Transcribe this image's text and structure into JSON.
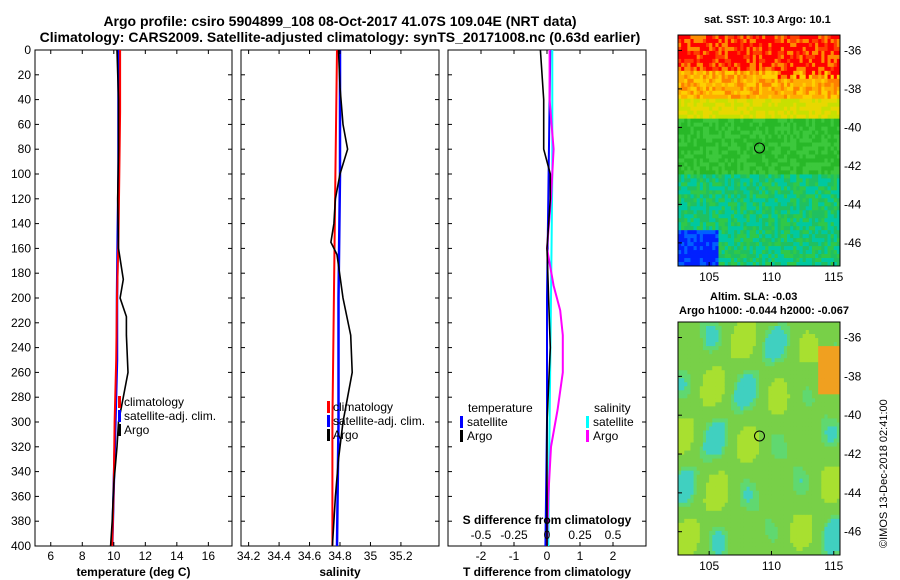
{
  "header": {
    "title_line1": "Argo profile: csiro 5904899_108 08-Oct-2017 41.07S 109.04E (NRT data)",
    "title_line2": "Climatology: CARS2009. Satellite-adjusted climatology: synTS_20171008.nc (0.63d earlier)"
  },
  "maps": {
    "sst_title": "sat. SST: 10.3 Argo: 10.1",
    "sla_title1": "Altim. SLA: -0.03",
    "sla_title2": "Argo h1000: -0.044 h2000: -0.067"
  },
  "footer": {
    "stamp": "©IMOS 13-Dec-2018 02:41:00"
  },
  "colors": {
    "climatology": "#ff0000",
    "satellite": "#0000ff",
    "argo": "#000000",
    "satellite_S": "#00ffff",
    "argo_S": "#ff00ff"
  },
  "chart_data": [
    {
      "type": "line",
      "xlabel": "temperature (deg C)",
      "ylabel": "",
      "xlim": [
        5,
        17.5
      ],
      "ylim": [
        400,
        0
      ],
      "xticks": [
        "6",
        "8",
        "10",
        "12",
        "14",
        "16"
      ],
      "yticks": [
        "0",
        "20",
        "40",
        "60",
        "80",
        "100",
        "120",
        "140",
        "160",
        "180",
        "200",
        "220",
        "240",
        "260",
        "280",
        "300",
        "320",
        "340",
        "360",
        "380",
        "400"
      ],
      "legend": [
        "climatology",
        "satellite-adj. clim.",
        "Argo"
      ],
      "series": [
        {
          "name": "climatology",
          "depth": [
            0,
            50,
            100,
            150,
            200,
            250,
            300,
            350,
            400
          ],
          "values": [
            10.4,
            10.4,
            10.35,
            10.3,
            10.2,
            10.15,
            10.05,
            10.0,
            9.9
          ]
        },
        {
          "name": "satellite-adj. clim.",
          "depth": [
            0,
            50,
            100,
            150,
            200,
            250,
            300,
            350,
            400
          ],
          "values": [
            10.3,
            10.3,
            10.3,
            10.25,
            10.2,
            10.2,
            10.1,
            10.0,
            9.9
          ]
        },
        {
          "name": "Argo",
          "depth": [
            0,
            40,
            80,
            120,
            160,
            185,
            200,
            215,
            230,
            260,
            280,
            300,
            320,
            350,
            380,
            400
          ],
          "values": [
            10.2,
            10.3,
            10.3,
            10.25,
            10.3,
            10.6,
            10.4,
            10.8,
            10.8,
            10.9,
            10.6,
            10.3,
            10.2,
            10.0,
            9.9,
            9.8
          ]
        }
      ]
    },
    {
      "type": "line",
      "xlabel": "salinity",
      "ylabel": "",
      "xlim": [
        34.15,
        35.45
      ],
      "ylim": [
        400,
        0
      ],
      "xticks": [
        "34.2",
        "34.4",
        "34.6",
        "34.8",
        "35",
        "35.2"
      ],
      "legend": [
        "climatology",
        "satellite-adj. clim.",
        "Argo"
      ],
      "series": [
        {
          "name": "climatology",
          "depth": [
            0,
            100,
            200,
            300,
            400
          ],
          "values": [
            34.78,
            34.77,
            34.76,
            34.75,
            34.75
          ]
        },
        {
          "name": "satellite-adj. clim.",
          "depth": [
            0,
            100,
            200,
            300,
            400
          ],
          "values": [
            34.8,
            34.8,
            34.79,
            34.79,
            34.78
          ]
        },
        {
          "name": "Argo",
          "depth": [
            0,
            30,
            60,
            80,
            100,
            120,
            140,
            155,
            165,
            200,
            230,
            260,
            280,
            300,
            330,
            360,
            400
          ],
          "values": [
            34.79,
            34.8,
            34.82,
            34.85,
            34.8,
            34.77,
            34.76,
            34.74,
            34.78,
            34.82,
            34.87,
            34.88,
            34.85,
            34.82,
            34.79,
            34.77,
            34.75
          ]
        }
      ]
    },
    {
      "type": "line",
      "xlabel": "T difference from climatology",
      "xlabel_top": "S difference from climatology",
      "ylabel": "",
      "xlim": [
        -3,
        3
      ],
      "ylim": [
        400,
        0
      ],
      "xticks": [
        "-2",
        "-1",
        "0",
        "1",
        "2"
      ],
      "xticks_top": [
        "-0.5",
        "-0.25",
        "0",
        "0.25",
        "0.5"
      ],
      "legend_left_title": "temperature",
      "legend_right_title": "salinity",
      "legend_left": [
        "satellite",
        "Argo"
      ],
      "legend_right": [
        "satellite",
        "Argo"
      ],
      "series": [
        {
          "name": "temperature satellite",
          "depth": [
            0,
            100,
            200,
            300,
            400
          ],
          "values": [
            0.1,
            0.05,
            0.0,
            0.0,
            -0.05
          ]
        },
        {
          "name": "temperature Argo",
          "depth": [
            0,
            40,
            80,
            100,
            120,
            160,
            200,
            240,
            300,
            360,
            400
          ],
          "values": [
            -0.2,
            -0.1,
            -0.1,
            0.1,
            0.1,
            0.0,
            0.05,
            0.1,
            0.0,
            0.0,
            0.0
          ]
        },
        {
          "name": "salinity satellite",
          "depth": [
            0,
            100,
            200,
            300,
            400
          ],
          "values": [
            0.04,
            0.04,
            0.03,
            0.02,
            0.01
          ]
        },
        {
          "name": "salinity Argo",
          "depth": [
            0,
            40,
            80,
            120,
            160,
            190,
            210,
            230,
            260,
            290,
            320,
            360,
            400
          ],
          "values": [
            0.02,
            0.02,
            0.05,
            0.03,
            0.0,
            0.05,
            0.1,
            0.12,
            0.12,
            0.08,
            0.03,
            0.01,
            0.0
          ]
        }
      ]
    },
    {
      "type": "heatmap",
      "title": "sat. SST: 10.3 Argo: 10.1",
      "xticks": [
        "105",
        "110",
        "115"
      ],
      "yticks": [
        "-36",
        "-38",
        "-40",
        "-42",
        "-44",
        "-46"
      ],
      "xlim": [
        102.5,
        115.5
      ],
      "ylim": [
        -47.2,
        -35.2
      ],
      "marker": {
        "lon": 109.04,
        "lat": -41.07
      }
    },
    {
      "type": "heatmap",
      "title": "Altim. SLA: -0.03",
      "xticks": [
        "105",
        "110",
        "115"
      ],
      "yticks": [
        "-36",
        "-38",
        "-40",
        "-42",
        "-44",
        "-46"
      ],
      "xlim": [
        102.5,
        115.5
      ],
      "ylim": [
        -47.2,
        -35.2
      ],
      "marker": {
        "lon": 109.04,
        "lat": -41.07
      }
    }
  ]
}
